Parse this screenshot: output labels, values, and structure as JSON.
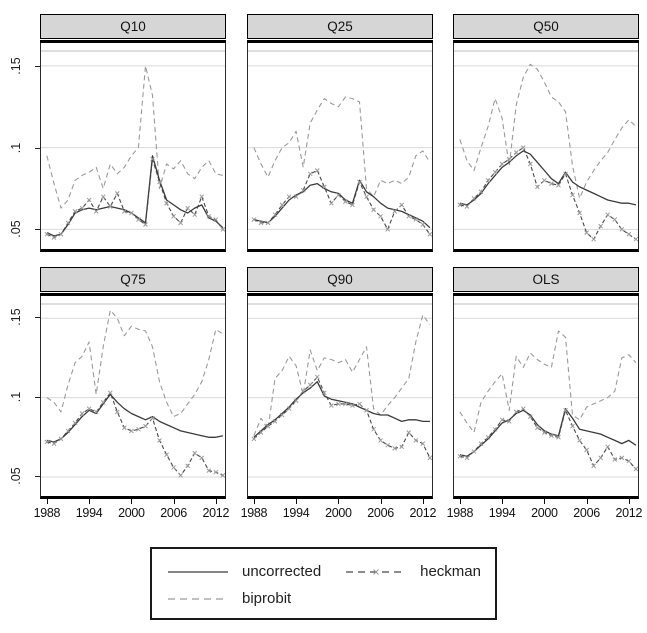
{
  "figure_type": "faceted line chart (quantile regressions over time)",
  "legend": {
    "items": [
      {
        "label": "uncorrected",
        "line_style": "solid"
      },
      {
        "label": "heckman",
        "line_style": "dashed-with-marker"
      },
      {
        "label": "biprobit",
        "line_style": "dashed"
      }
    ]
  },
  "colors": {
    "uncorrected": "#3a3a3a",
    "heckman": "#474747",
    "heckman_marker": "#9a9a9a",
    "biprobit": "#9a9a9a",
    "gridline": "#d9d9d9",
    "frame_top": "#bdbdbd",
    "header_fill": "#d6d6d6",
    "axis": "#000000"
  },
  "chart_data": {
    "type": "line",
    "facets": [
      "Q10",
      "Q25",
      "Q50",
      "Q75",
      "Q90",
      "OLS"
    ],
    "x": [
      1988,
      1989,
      1990,
      1991,
      1992,
      1993,
      1994,
      1995,
      1996,
      1997,
      1998,
      1999,
      2000,
      2001,
      2002,
      2003,
      2004,
      2005,
      2006,
      2007,
      2008,
      2009,
      2010,
      2011,
      2012,
      2013
    ],
    "xticks": [
      1988,
      1994,
      2000,
      2006,
      2012
    ],
    "xtick_labels": [
      "1988",
      "1994",
      "2000",
      "2006",
      "2012"
    ],
    "yticks": [
      0.05,
      0.1,
      0.15
    ],
    "ytick_labels": [
      ".05",
      ".1",
      ".15"
    ],
    "ylim": [
      0.038,
      0.164
    ],
    "xlim": [
      1987.16,
      2013.3
    ],
    "grid": "horizontal",
    "legend_position": "bottom",
    "series_names": [
      "uncorrected",
      "heckman",
      "biprobit"
    ],
    "panels": [
      {
        "title": "Q10",
        "series": {
          "uncorrected": [
            0.048,
            0.046,
            0.047,
            0.053,
            0.06,
            0.062,
            0.063,
            0.062,
            0.063,
            0.064,
            0.063,
            0.062,
            0.06,
            0.057,
            0.054,
            0.095,
            0.08,
            0.068,
            0.065,
            0.062,
            0.06,
            0.063,
            0.065,
            0.057,
            0.055,
            0.051
          ],
          "heckman": [
            0.047,
            0.045,
            0.047,
            0.054,
            0.061,
            0.063,
            0.068,
            0.061,
            0.07,
            0.064,
            0.072,
            0.061,
            0.06,
            0.056,
            0.053,
            0.093,
            0.079,
            0.066,
            0.058,
            0.054,
            0.063,
            0.059,
            0.07,
            0.058,
            0.056,
            0.05
          ],
          "biprobit": [
            0.095,
            0.078,
            0.063,
            0.068,
            0.08,
            0.083,
            0.085,
            0.088,
            0.075,
            0.09,
            0.084,
            0.088,
            0.095,
            0.1,
            0.15,
            0.132,
            0.075,
            0.09,
            0.087,
            0.092,
            0.084,
            0.081,
            0.088,
            0.092,
            0.084,
            0.083
          ]
        }
      },
      {
        "title": "Q25",
        "series": {
          "uncorrected": [
            0.056,
            0.055,
            0.054,
            0.058,
            0.063,
            0.068,
            0.071,
            0.073,
            0.077,
            0.078,
            0.075,
            0.073,
            0.072,
            0.068,
            0.066,
            0.08,
            0.073,
            0.07,
            0.066,
            0.063,
            0.062,
            0.061,
            0.059,
            0.057,
            0.055,
            0.051
          ],
          "heckman": [
            0.056,
            0.054,
            0.054,
            0.059,
            0.065,
            0.07,
            0.07,
            0.074,
            0.084,
            0.086,
            0.076,
            0.066,
            0.071,
            0.067,
            0.065,
            0.079,
            0.07,
            0.062,
            0.058,
            0.05,
            0.061,
            0.065,
            0.058,
            0.056,
            0.053,
            0.047
          ],
          "biprobit": [
            0.1,
            0.09,
            0.082,
            0.092,
            0.1,
            0.103,
            0.11,
            0.088,
            0.115,
            0.123,
            0.13,
            0.127,
            0.125,
            0.131,
            0.13,
            0.128,
            0.075,
            0.07,
            0.08,
            0.078,
            0.08,
            0.078,
            0.082,
            0.095,
            0.098,
            0.091
          ]
        }
      },
      {
        "title": "Q50",
        "series": {
          "uncorrected": [
            0.066,
            0.065,
            0.068,
            0.072,
            0.078,
            0.083,
            0.088,
            0.091,
            0.095,
            0.098,
            0.096,
            0.091,
            0.086,
            0.081,
            0.078,
            0.085,
            0.079,
            0.076,
            0.074,
            0.072,
            0.07,
            0.068,
            0.067,
            0.066,
            0.066,
            0.065
          ],
          "heckman": [
            0.065,
            0.064,
            0.069,
            0.073,
            0.08,
            0.085,
            0.09,
            0.093,
            0.097,
            0.1,
            0.09,
            0.076,
            0.08,
            0.078,
            0.077,
            0.084,
            0.071,
            0.06,
            0.048,
            0.044,
            0.052,
            0.059,
            0.056,
            0.05,
            0.047,
            0.044
          ],
          "biprobit": [
            0.105,
            0.092,
            0.086,
            0.1,
            0.113,
            0.13,
            0.118,
            0.089,
            0.126,
            0.143,
            0.151,
            0.148,
            0.14,
            0.131,
            0.128,
            0.122,
            0.089,
            0.069,
            0.079,
            0.086,
            0.092,
            0.097,
            0.105,
            0.112,
            0.117,
            0.113
          ]
        }
      },
      {
        "title": "Q75",
        "series": {
          "uncorrected": [
            0.073,
            0.072,
            0.074,
            0.078,
            0.083,
            0.088,
            0.092,
            0.09,
            0.096,
            0.102,
            0.097,
            0.093,
            0.09,
            0.088,
            0.086,
            0.088,
            0.085,
            0.083,
            0.081,
            0.079,
            0.078,
            0.077,
            0.076,
            0.075,
            0.075,
            0.076
          ],
          "heckman": [
            0.072,
            0.071,
            0.074,
            0.079,
            0.084,
            0.09,
            0.093,
            0.091,
            0.097,
            0.103,
            0.091,
            0.081,
            0.079,
            0.08,
            0.082,
            0.087,
            0.073,
            0.064,
            0.056,
            0.051,
            0.057,
            0.065,
            0.062,
            0.054,
            0.053,
            0.051
          ],
          "biprobit": [
            0.1,
            0.097,
            0.091,
            0.108,
            0.122,
            0.126,
            0.135,
            0.102,
            0.132,
            0.155,
            0.15,
            0.139,
            0.145,
            0.143,
            0.142,
            0.132,
            0.11,
            0.097,
            0.088,
            0.09,
            0.096,
            0.102,
            0.11,
            0.124,
            0.143,
            0.14
          ]
        }
      },
      {
        "title": "Q90",
        "series": {
          "uncorrected": [
            0.075,
            0.079,
            0.083,
            0.086,
            0.09,
            0.094,
            0.099,
            0.103,
            0.106,
            0.11,
            0.101,
            0.099,
            0.098,
            0.097,
            0.096,
            0.094,
            0.092,
            0.09,
            0.089,
            0.089,
            0.087,
            0.085,
            0.086,
            0.086,
            0.085,
            0.085
          ],
          "heckman": [
            0.074,
            0.078,
            0.082,
            0.085,
            0.089,
            0.093,
            0.098,
            0.104,
            0.108,
            0.113,
            0.103,
            0.095,
            0.096,
            0.096,
            0.095,
            0.096,
            0.092,
            0.08,
            0.073,
            0.07,
            0.068,
            0.069,
            0.078,
            0.073,
            0.071,
            0.062
          ],
          "biprobit": [
            0.076,
            0.087,
            0.08,
            0.112,
            0.117,
            0.126,
            0.12,
            0.102,
            0.13,
            0.117,
            0.125,
            0.124,
            0.122,
            0.124,
            0.116,
            0.124,
            0.132,
            0.093,
            0.089,
            0.095,
            0.1,
            0.106,
            0.112,
            0.135,
            0.152,
            0.146
          ]
        }
      },
      {
        "title": "OLS",
        "series": {
          "uncorrected": [
            0.064,
            0.063,
            0.066,
            0.07,
            0.074,
            0.079,
            0.084,
            0.086,
            0.09,
            0.092,
            0.089,
            0.083,
            0.079,
            0.077,
            0.076,
            0.093,
            0.087,
            0.08,
            0.079,
            0.078,
            0.077,
            0.075,
            0.073,
            0.071,
            0.073,
            0.07
          ],
          "heckman": [
            0.063,
            0.062,
            0.066,
            0.071,
            0.075,
            0.08,
            0.086,
            0.085,
            0.091,
            0.093,
            0.088,
            0.081,
            0.078,
            0.076,
            0.075,
            0.092,
            0.082,
            0.073,
            0.067,
            0.057,
            0.062,
            0.069,
            0.061,
            0.062,
            0.06,
            0.055
          ],
          "biprobit": [
            0.091,
            0.084,
            0.078,
            0.097,
            0.104,
            0.11,
            0.115,
            0.092,
            0.126,
            0.119,
            0.128,
            0.124,
            0.121,
            0.119,
            0.142,
            0.138,
            0.089,
            0.086,
            0.094,
            0.096,
            0.098,
            0.1,
            0.104,
            0.125,
            0.127,
            0.122
          ]
        }
      }
    ]
  }
}
